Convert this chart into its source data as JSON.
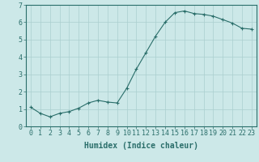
{
  "x": [
    0,
    1,
    2,
    3,
    4,
    5,
    6,
    7,
    8,
    9,
    10,
    11,
    12,
    13,
    14,
    15,
    16,
    17,
    18,
    19,
    20,
    21,
    22,
    23
  ],
  "y": [
    1.1,
    0.75,
    0.55,
    0.75,
    0.85,
    1.05,
    1.35,
    1.5,
    1.4,
    1.35,
    2.2,
    3.3,
    4.25,
    5.2,
    6.0,
    6.55,
    6.65,
    6.5,
    6.45,
    6.35,
    6.15,
    5.95,
    5.65,
    5.6
  ],
  "line_color": "#2a6e6a",
  "marker": "+",
  "marker_size": 3,
  "bg_color": "#cce8e8",
  "grid_color": "#aacfcf",
  "xlabel": "Humidex (Indice chaleur)",
  "xlim": [
    -0.5,
    23.5
  ],
  "ylim": [
    0,
    7
  ],
  "yticks": [
    0,
    1,
    2,
    3,
    4,
    5,
    6,
    7
  ],
  "xticks": [
    0,
    1,
    2,
    3,
    4,
    5,
    6,
    7,
    8,
    9,
    10,
    11,
    12,
    13,
    14,
    15,
    16,
    17,
    18,
    19,
    20,
    21,
    22,
    23
  ],
  "axis_color": "#2a6e6a",
  "tick_color": "#2a6e6a",
  "tick_fontsize": 6,
  "xlabel_fontsize": 7
}
